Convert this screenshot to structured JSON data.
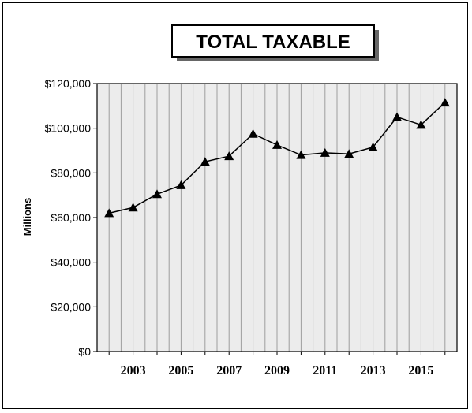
{
  "chart_data": {
    "type": "line",
    "title": "TOTAL TAXABLE",
    "ylabel": "Millions",
    "xlabel": "",
    "x": [
      2002,
      2003,
      2004,
      2005,
      2006,
      2007,
      2008,
      2009,
      2010,
      2011,
      2012,
      2013,
      2014,
      2015,
      2016
    ],
    "x_tick_labels": [
      "2003",
      "2005",
      "2007",
      "2009",
      "2011",
      "2013",
      "2015"
    ],
    "x_tick_values": [
      2003,
      2005,
      2007,
      2009,
      2011,
      2013,
      2015
    ],
    "series": [
      {
        "values": [
          62000,
          64500,
          70500,
          74500,
          85000,
          87500,
          97500,
          92500,
          88000,
          89000,
          88500,
          91500,
          105000,
          101500,
          111500
        ],
        "color": "#000000",
        "marker": "triangle"
      }
    ],
    "ylim": [
      0,
      120000
    ],
    "y_ticks": [
      0,
      20000,
      40000,
      60000,
      80000,
      100000,
      120000
    ],
    "y_tick_labels": [
      "$0",
      "$20,000",
      "$40,000",
      "$60,000",
      "$80,000",
      "$100,000",
      "$120,000"
    ],
    "grid": {
      "vertical": true,
      "horizontal": false
    },
    "colors": {
      "plot_background": "#ececec",
      "grid": "#9e9e9e",
      "axis": "#000000"
    }
  }
}
